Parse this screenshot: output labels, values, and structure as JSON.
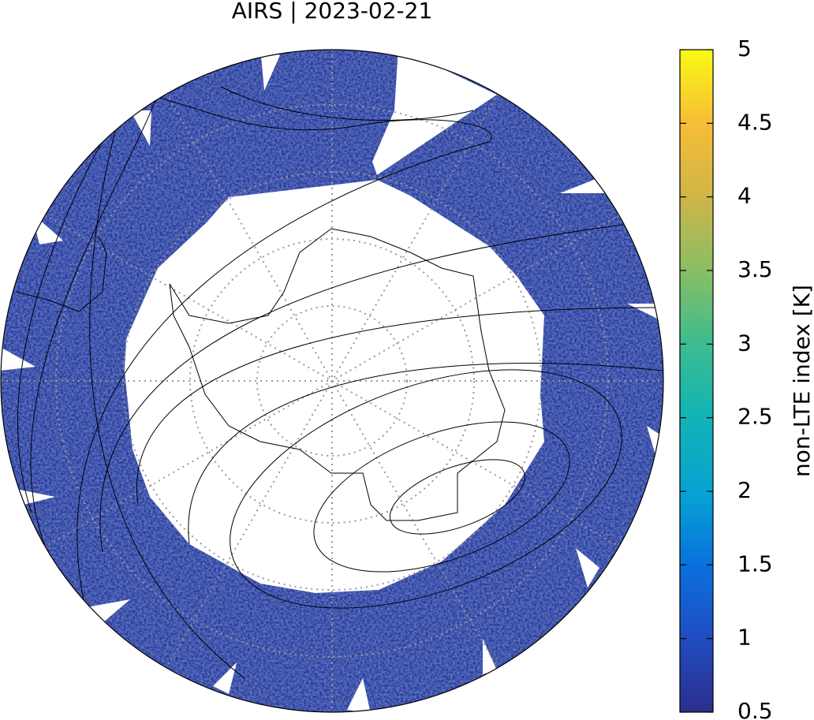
{
  "title": "AIRS | 2023-02-21",
  "colorbar": {
    "label": "non-LTE index [K]",
    "range": [
      0.5,
      5
    ],
    "ticks": [
      0.5,
      1,
      1.5,
      2,
      2.5,
      3,
      3.5,
      4,
      4.5,
      5
    ]
  }
}
